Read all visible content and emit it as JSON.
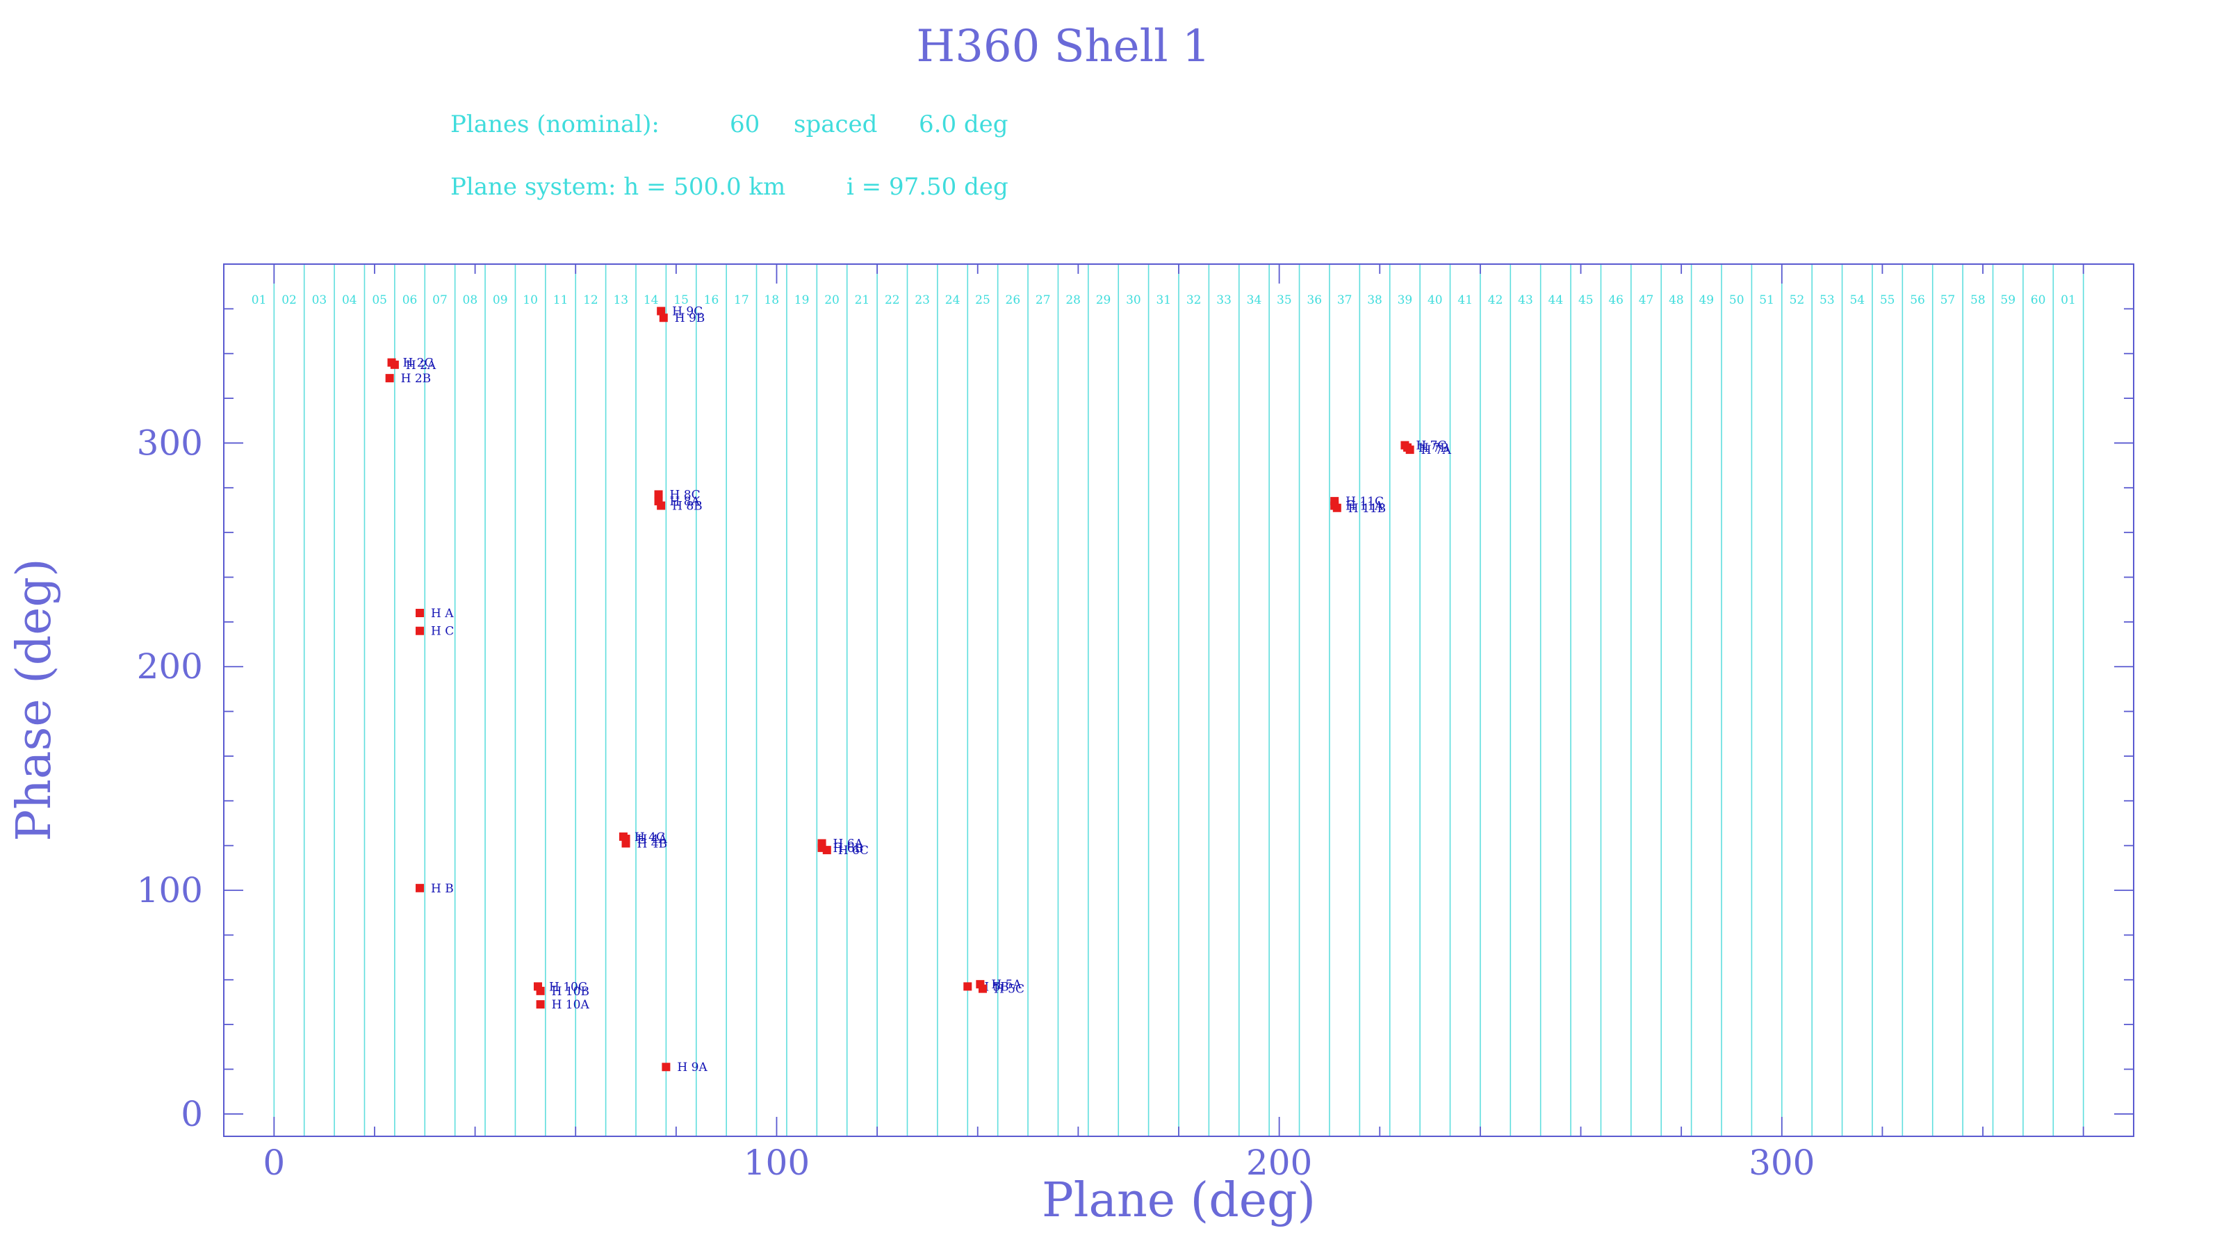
{
  "chart_data": {
    "type": "scatter",
    "title": "H360 Shell 1",
    "info_lines": [
      [
        "Planes (nominal):",
        "60",
        "spaced",
        "6.0 deg"
      ],
      [
        "Plane system: h = 500.0 km",
        "i = 97.50 deg"
      ]
    ],
    "xlabel": "Plane (deg)",
    "ylabel": "Phase (deg)",
    "xlim": [
      -10,
      370
    ],
    "ylim": [
      -10,
      380
    ],
    "x_ticks": [
      "0",
      "100",
      "200",
      "300"
    ],
    "x_tick_values": [
      0,
      100,
      200,
      300
    ],
    "y_ticks": [
      "0",
      "100",
      "200",
      "300"
    ],
    "y_tick_values": [
      0,
      100,
      200,
      300
    ],
    "plane_spacing": 6.0,
    "plane_labels": [
      "01",
      "02",
      "03",
      "04",
      "05",
      "06",
      "07",
      "08",
      "09",
      "10",
      "11",
      "12",
      "13",
      "14",
      "15",
      "16",
      "17",
      "18",
      "19",
      "20",
      "21",
      "22",
      "23",
      "24",
      "25",
      "26",
      "27",
      "28",
      "29",
      "30",
      "31",
      "32",
      "33",
      "34",
      "35",
      "36",
      "37",
      "38",
      "39",
      "40",
      "41",
      "42",
      "43",
      "44",
      "45",
      "46",
      "47",
      "48",
      "49",
      "50",
      "51",
      "52",
      "53",
      "54",
      "55",
      "56",
      "57",
      "58",
      "59",
      "60",
      "01"
    ],
    "grid": false,
    "colors": {
      "frame": "#5a5ad0",
      "title": "#6a6ad8",
      "info": "#3fdcdc",
      "plane_line": "#5fdede",
      "marker": "#e81c1c",
      "point_label": "#1414b4"
    },
    "points": [
      {
        "x": 23.4,
        "y": 336.0,
        "label": "H 2C"
      },
      {
        "x": 24.0,
        "y": 335.0,
        "label": "H 2A"
      },
      {
        "x": 23.0,
        "y": 329.0,
        "label": "H 2B"
      },
      {
        "x": 29.0,
        "y": 224.0,
        "label": "H A"
      },
      {
        "x": 29.0,
        "y": 216.0,
        "label": "H C"
      },
      {
        "x": 29.0,
        "y": 101.0,
        "label": "H B"
      },
      {
        "x": 52.5,
        "y": 57.0,
        "label": "H 10C"
      },
      {
        "x": 53.0,
        "y": 55.0,
        "label": "H 10B"
      },
      {
        "x": 53.0,
        "y": 49.0,
        "label": "H 10A"
      },
      {
        "x": 69.5,
        "y": 124.0,
        "label": "H 4C"
      },
      {
        "x": 70.0,
        "y": 123.0,
        "label": "H 4A"
      },
      {
        "x": 70.0,
        "y": 121.0,
        "label": "H 4B"
      },
      {
        "x": 77.0,
        "y": 359.0,
        "label": "H 9C"
      },
      {
        "x": 77.5,
        "y": 356.0,
        "label": "H 9B"
      },
      {
        "x": 76.5,
        "y": 277.0,
        "label": "H 8C"
      },
      {
        "x": 76.5,
        "y": 274.0,
        "label": "H 8A"
      },
      {
        "x": 77.0,
        "y": 272.0,
        "label": "H 8B"
      },
      {
        "x": 78.0,
        "y": 21.0,
        "label": "H 9A"
      },
      {
        "x": 109.0,
        "y": 121.0,
        "label": "H 6A"
      },
      {
        "x": 109.0,
        "y": 119.0,
        "label": "H 6B"
      },
      {
        "x": 110.0,
        "y": 118.0,
        "label": "H 6C"
      },
      {
        "x": 138.0,
        "y": 57.0,
        "label": "H 5B"
      },
      {
        "x": 140.5,
        "y": 58.0,
        "label": "H 5A"
      },
      {
        "x": 141.0,
        "y": 56.0,
        "label": "H 5C"
      },
      {
        "x": 211.0,
        "y": 274.0,
        "label": "H 11C"
      },
      {
        "x": 211.0,
        "y": 272.0,
        "label": "H 11A"
      },
      {
        "x": 211.5,
        "y": 271.0,
        "label": "H 11B"
      },
      {
        "x": 225.0,
        "y": 299.0,
        "label": "H 7C"
      },
      {
        "x": 225.5,
        "y": 298.0,
        "label": "H 7B"
      },
      {
        "x": 226.0,
        "y": 297.0,
        "label": "H 7A"
      }
    ]
  }
}
